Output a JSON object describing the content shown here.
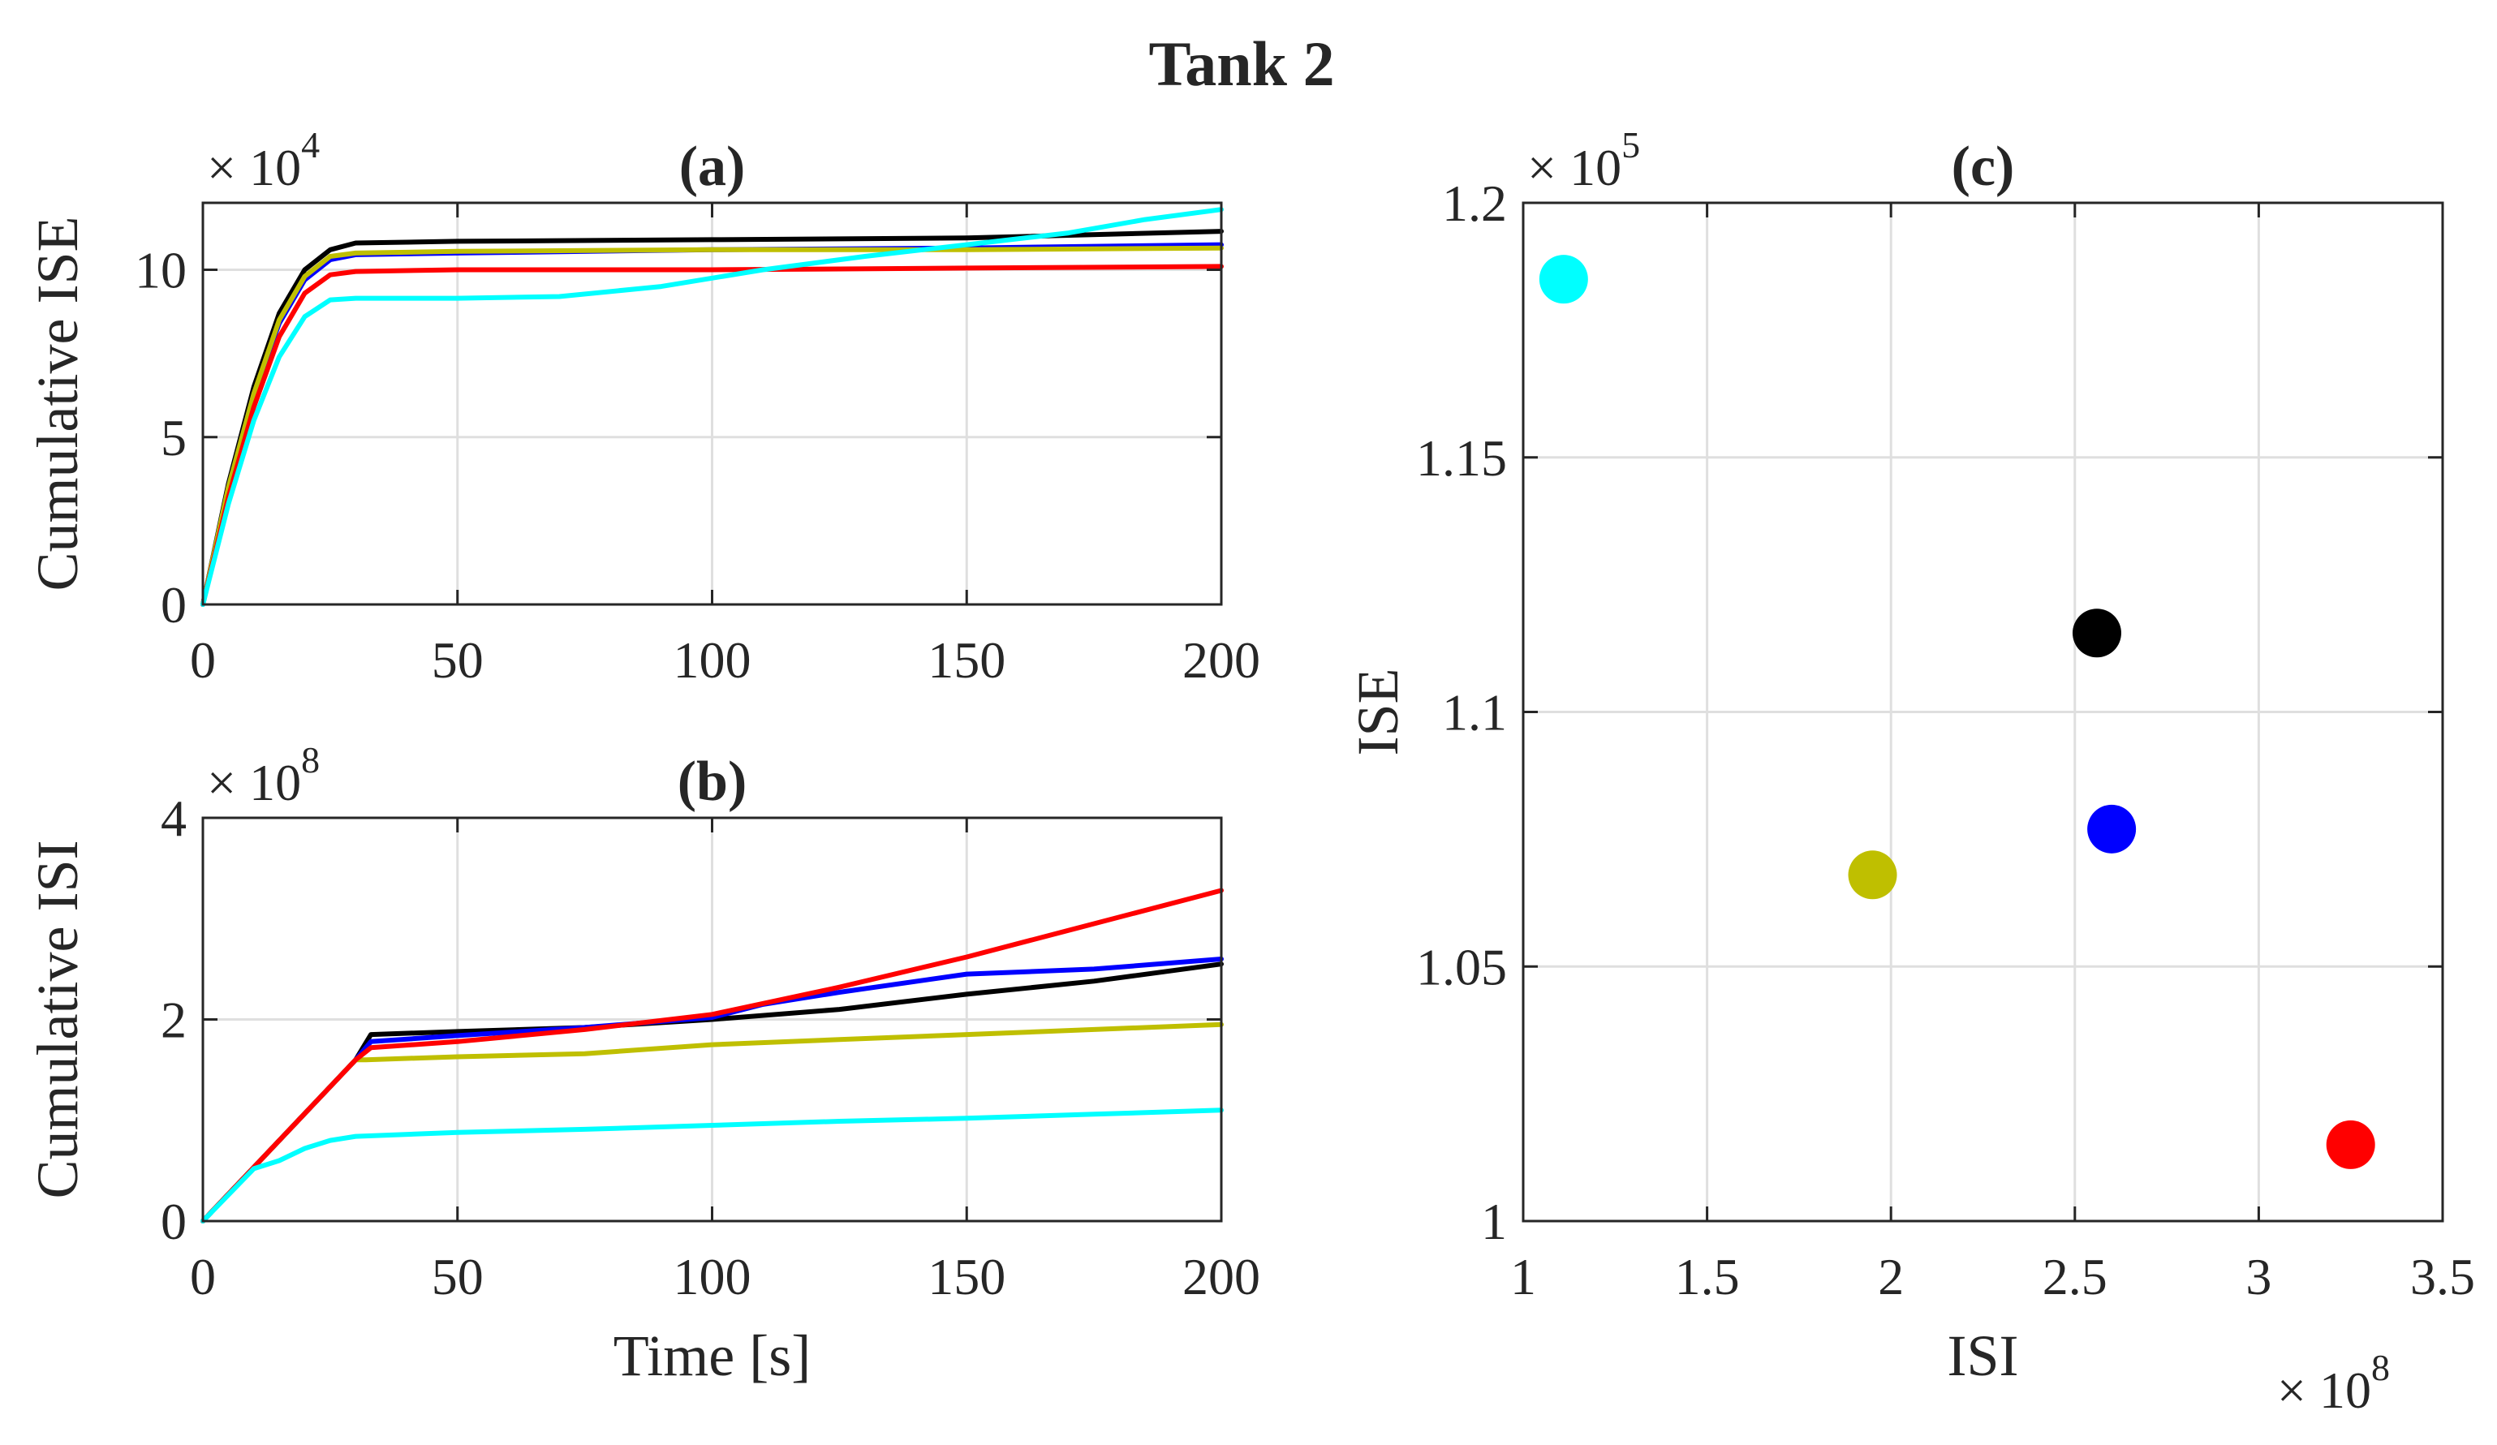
{
  "figure_title": "Tank 2",
  "colors": {
    "black": "#000000",
    "blue": "#0000ff",
    "olive": "#bfbf00",
    "red": "#ff0000",
    "cyan": "#00ffff"
  },
  "chart_data": [
    {
      "id": "a",
      "type": "line",
      "title": "(a)",
      "xlabel": "",
      "ylabel": "Cumulative ISE",
      "y_exponent": "× 10^4",
      "y_exponent_base": "× 10",
      "y_exponent_power": "4",
      "xlim": [
        0,
        200
      ],
      "ylim": [
        0,
        12
      ],
      "xticks": [
        0,
        50,
        100,
        150,
        200
      ],
      "xtick_labels": [
        "0",
        "50",
        "100",
        "150",
        "200"
      ],
      "yticks": [
        0,
        5,
        10
      ],
      "ytick_labels": [
        "0",
        "5",
        "10"
      ],
      "grid": true,
      "series": [
        {
          "name": "black",
          "color": "#000000",
          "points": [
            [
              0,
              0
            ],
            [
              5,
              3.6
            ],
            [
              10,
              6.5
            ],
            [
              15,
              8.7
            ],
            [
              20,
              10.0
            ],
            [
              25,
              10.6
            ],
            [
              30,
              10.8
            ],
            [
              50,
              10.85
            ],
            [
              100,
              10.9
            ],
            [
              150,
              10.95
            ],
            [
              200,
              11.15
            ]
          ]
        },
        {
          "name": "blue",
          "color": "#0000ff",
          "points": [
            [
              0,
              0
            ],
            [
              5,
              3.5
            ],
            [
              10,
              6.3
            ],
            [
              15,
              8.4
            ],
            [
              20,
              9.7
            ],
            [
              25,
              10.3
            ],
            [
              30,
              10.45
            ],
            [
              50,
              10.5
            ],
            [
              100,
              10.6
            ],
            [
              150,
              10.65
            ],
            [
              200,
              10.75
            ]
          ]
        },
        {
          "name": "olive",
          "color": "#bfbf00",
          "points": [
            [
              0,
              0
            ],
            [
              5,
              3.5
            ],
            [
              10,
              6.3
            ],
            [
              15,
              8.5
            ],
            [
              20,
              9.8
            ],
            [
              25,
              10.4
            ],
            [
              30,
              10.5
            ],
            [
              50,
              10.55
            ],
            [
              100,
              10.6
            ],
            [
              150,
              10.6
            ],
            [
              200,
              10.65
            ]
          ]
        },
        {
          "name": "red",
          "color": "#ff0000",
          "points": [
            [
              0,
              0
            ],
            [
              5,
              3.2
            ],
            [
              10,
              5.9
            ],
            [
              15,
              8.0
            ],
            [
              20,
              9.3
            ],
            [
              25,
              9.85
            ],
            [
              30,
              9.95
            ],
            [
              50,
              10.0
            ],
            [
              100,
              10.0
            ],
            [
              150,
              10.05
            ],
            [
              200,
              10.1
            ]
          ]
        },
        {
          "name": "cyan",
          "color": "#00ffff",
          "points": [
            [
              0,
              0
            ],
            [
              5,
              3.0
            ],
            [
              10,
              5.5
            ],
            [
              15,
              7.4
            ],
            [
              20,
              8.6
            ],
            [
              25,
              9.1
            ],
            [
              30,
              9.15
            ],
            [
              50,
              9.15
            ],
            [
              70,
              9.2
            ],
            [
              90,
              9.5
            ],
            [
              110,
              10.0
            ],
            [
              130,
              10.4
            ],
            [
              150,
              10.75
            ],
            [
              170,
              11.1
            ],
            [
              185,
              11.5
            ],
            [
              200,
              11.8
            ]
          ]
        }
      ]
    },
    {
      "id": "b",
      "type": "line",
      "title": "(b)",
      "xlabel": "Time [s]",
      "ylabel": "Cumulative ISI",
      "y_exponent": "× 10^8",
      "y_exponent_base": "× 10",
      "y_exponent_power": "8",
      "xlim": [
        0,
        200
      ],
      "ylim": [
        0,
        4
      ],
      "xticks": [
        0,
        50,
        100,
        150,
        200
      ],
      "xtick_labels": [
        "0",
        "50",
        "100",
        "150",
        "200"
      ],
      "yticks": [
        0,
        2,
        4
      ],
      "ytick_labels": [
        "0",
        "2",
        "4"
      ],
      "grid": true,
      "series": [
        {
          "name": "black",
          "color": "#000000",
          "points": [
            [
              0,
              0
            ],
            [
              30,
              1.6
            ],
            [
              33,
              1.85
            ],
            [
              50,
              1.88
            ],
            [
              75,
              1.92
            ],
            [
              100,
              2.0
            ],
            [
              125,
              2.1
            ],
            [
              150,
              2.25
            ],
            [
              175,
              2.38
            ],
            [
              200,
              2.55
            ]
          ]
        },
        {
          "name": "blue",
          "color": "#0000ff",
          "points": [
            [
              0,
              0
            ],
            [
              30,
              1.6
            ],
            [
              33,
              1.78
            ],
            [
              50,
              1.84
            ],
            [
              75,
              1.92
            ],
            [
              100,
              2.02
            ],
            [
              110,
              2.15
            ],
            [
              125,
              2.27
            ],
            [
              150,
              2.45
            ],
            [
              175,
              2.5
            ],
            [
              200,
              2.6
            ]
          ]
        },
        {
          "name": "olive",
          "color": "#bfbf00",
          "points": [
            [
              0,
              0
            ],
            [
              30,
              1.6
            ],
            [
              32,
              1.6
            ],
            [
              50,
              1.63
            ],
            [
              75,
              1.66
            ],
            [
              100,
              1.75
            ],
            [
              125,
              1.8
            ],
            [
              150,
              1.85
            ],
            [
              175,
              1.9
            ],
            [
              200,
              1.95
            ]
          ]
        },
        {
          "name": "red",
          "color": "#ff0000",
          "points": [
            [
              0,
              0
            ],
            [
              30,
              1.6
            ],
            [
              33,
              1.72
            ],
            [
              50,
              1.78
            ],
            [
              75,
              1.9
            ],
            [
              100,
              2.05
            ],
            [
              125,
              2.32
            ],
            [
              150,
              2.62
            ],
            [
              175,
              2.95
            ],
            [
              200,
              3.28
            ]
          ]
        },
        {
          "name": "cyan",
          "color": "#00ffff",
          "points": [
            [
              0,
              0
            ],
            [
              10,
              0.52
            ],
            [
              15,
              0.6
            ],
            [
              20,
              0.72
            ],
            [
              25,
              0.8
            ],
            [
              30,
              0.84
            ],
            [
              50,
              0.88
            ],
            [
              75,
              0.91
            ],
            [
              100,
              0.95
            ],
            [
              125,
              0.99
            ],
            [
              150,
              1.02
            ],
            [
              175,
              1.06
            ],
            [
              200,
              1.1
            ]
          ]
        }
      ]
    },
    {
      "id": "c",
      "type": "scatter",
      "title": "(c)",
      "xlabel": "ISI",
      "ylabel": "ISE",
      "x_exponent": "× 10^8",
      "x_exponent_base": "× 10",
      "x_exponent_power": "8",
      "y_exponent": "× 10^5",
      "y_exponent_base": "× 10",
      "y_exponent_power": "5",
      "xlim": [
        1,
        3.5
      ],
      "ylim": [
        1,
        1.2
      ],
      "xticks": [
        1,
        1.5,
        2,
        2.5,
        3,
        3.5
      ],
      "xtick_labels": [
        "1",
        "1.5",
        "2",
        "2.5",
        "3",
        "3.5"
      ],
      "yticks": [
        1,
        1.05,
        1.1,
        1.15,
        1.2
      ],
      "ytick_labels": [
        "1",
        "1.05",
        "1.1",
        "1.15",
        "1.2"
      ],
      "grid": true,
      "points": [
        {
          "name": "cyan",
          "color": "#00ffff",
          "x": 1.11,
          "y": 1.185
        },
        {
          "name": "black",
          "color": "#000000",
          "x": 2.56,
          "y": 1.1155
        },
        {
          "name": "blue",
          "color": "#0000ff",
          "x": 2.6,
          "y": 1.077
        },
        {
          "name": "olive",
          "color": "#bfbf00",
          "x": 1.95,
          "y": 1.068
        },
        {
          "name": "red",
          "color": "#ff0000",
          "x": 3.25,
          "y": 1.015
        }
      ]
    }
  ]
}
